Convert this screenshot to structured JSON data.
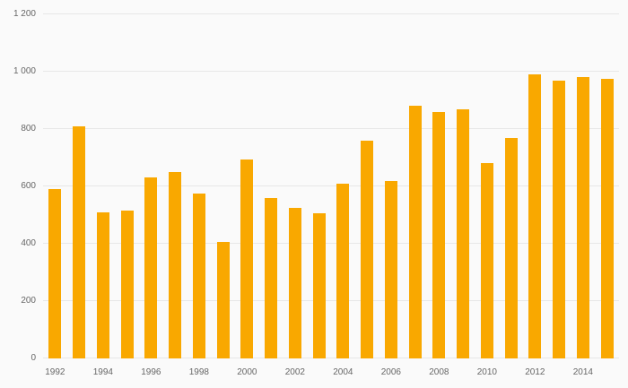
{
  "colors": {
    "background": "#fafafa",
    "bar": "#f9a800",
    "gridline": "#e7e7e7",
    "tick_text": "#666666"
  },
  "chart_data": {
    "type": "bar",
    "title": "",
    "xlabel": "",
    "ylabel": "",
    "categories": [
      1992,
      1993,
      1994,
      1995,
      1996,
      1997,
      1998,
      1999,
      2000,
      2001,
      2002,
      2003,
      2004,
      2005,
      2006,
      2007,
      2008,
      2009,
      2010,
      2011,
      2012,
      2013,
      2014,
      2015
    ],
    "values": [
      590,
      810,
      510,
      515,
      630,
      650,
      575,
      405,
      695,
      560,
      525,
      505,
      610,
      760,
      620,
      880,
      860,
      870,
      680,
      770,
      990,
      970,
      980,
      975
    ],
    "xtick_labels": [
      "1992",
      "",
      "1994",
      "",
      "1996",
      "",
      "1998",
      "",
      "2000",
      "",
      "2002",
      "",
      "2004",
      "",
      "2006",
      "",
      "2008",
      "",
      "2010",
      "",
      "2012",
      "",
      "2014",
      ""
    ],
    "yticks": [
      0,
      200,
      400,
      600,
      800,
      1000,
      1200
    ],
    "ytick_labels": [
      "0",
      "200",
      "400",
      "600",
      "800",
      "1 000",
      "1 200"
    ],
    "ylim": [
      0,
      1200
    ],
    "grid": "horizontal",
    "legend": "none"
  }
}
